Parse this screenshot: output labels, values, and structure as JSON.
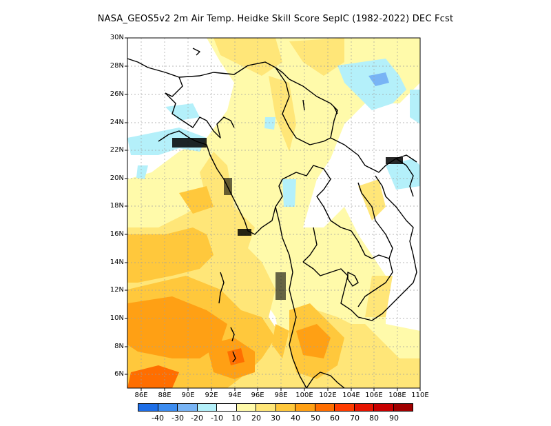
{
  "title": "NASA_GEOS5v2  2m Air Temp. Heidke Skill Score SepIC (1982-2022) DEC Fcst",
  "lat_labels": [
    "30N",
    "28N",
    "26N",
    "24N",
    "22N",
    "20N",
    "18N",
    "16N",
    "14N",
    "12N",
    "10N",
    "8N",
    "6N"
  ],
  "lon_labels": [
    "86E",
    "88E",
    "90E",
    "92E",
    "94E",
    "96E",
    "98E",
    "100E",
    "102E",
    "104E",
    "106E",
    "108E",
    "110E"
  ],
  "colorbar": {
    "colors": [
      "#1e6ee6",
      "#3c8cf0",
      "#78b4f5",
      "#b4f0fa",
      "#ffffff",
      "#fffaaa",
      "#ffe678",
      "#ffc83c",
      "#ffa014",
      "#ff6e00",
      "#ff3c00",
      "#e61400",
      "#c80000",
      "#a00000"
    ],
    "labels": [
      "-40",
      "-30",
      "-20",
      "-10",
      "10",
      "20",
      "30",
      "40",
      "50",
      "60",
      "70",
      "80",
      "90"
    ]
  }
}
